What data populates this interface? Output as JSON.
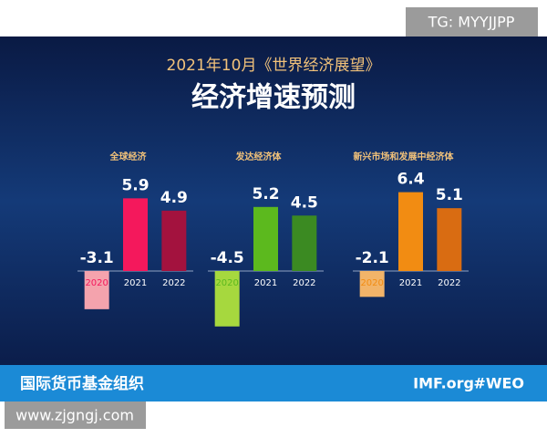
{
  "header": {
    "subtitle": "2021年10月《世界经济展望》",
    "title": "经济增速预测"
  },
  "footer": {
    "org": "国际货币基金组织",
    "site": "IMF.org",
    "tag": "#WEO"
  },
  "watermarks": {
    "top": "TG: MYYJJPP",
    "bottom": "www.zjgngj.com"
  },
  "chart_data": [
    {
      "type": "bar",
      "title": "全球经济",
      "categories": [
        "2020",
        "2021",
        "2022"
      ],
      "values": [
        -3.1,
        5.9,
        4.9
      ],
      "colors": [
        "#f4a3ad",
        "#f4185c",
        "#a3123e"
      ]
    },
    {
      "type": "bar",
      "title": "发达经济体",
      "categories": [
        "2020",
        "2021",
        "2022"
      ],
      "values": [
        -4.5,
        5.2,
        4.5
      ],
      "colors": [
        "#a6d83e",
        "#5cb91e",
        "#3b8a22"
      ]
    },
    {
      "type": "bar",
      "title": "新兴市场和发展中经济体",
      "categories": [
        "2020",
        "2021",
        "2022"
      ],
      "values": [
        -2.1,
        6.4,
        5.1
      ],
      "colors": [
        "#f2b469",
        "#f28c12",
        "#d96c12"
      ]
    }
  ]
}
